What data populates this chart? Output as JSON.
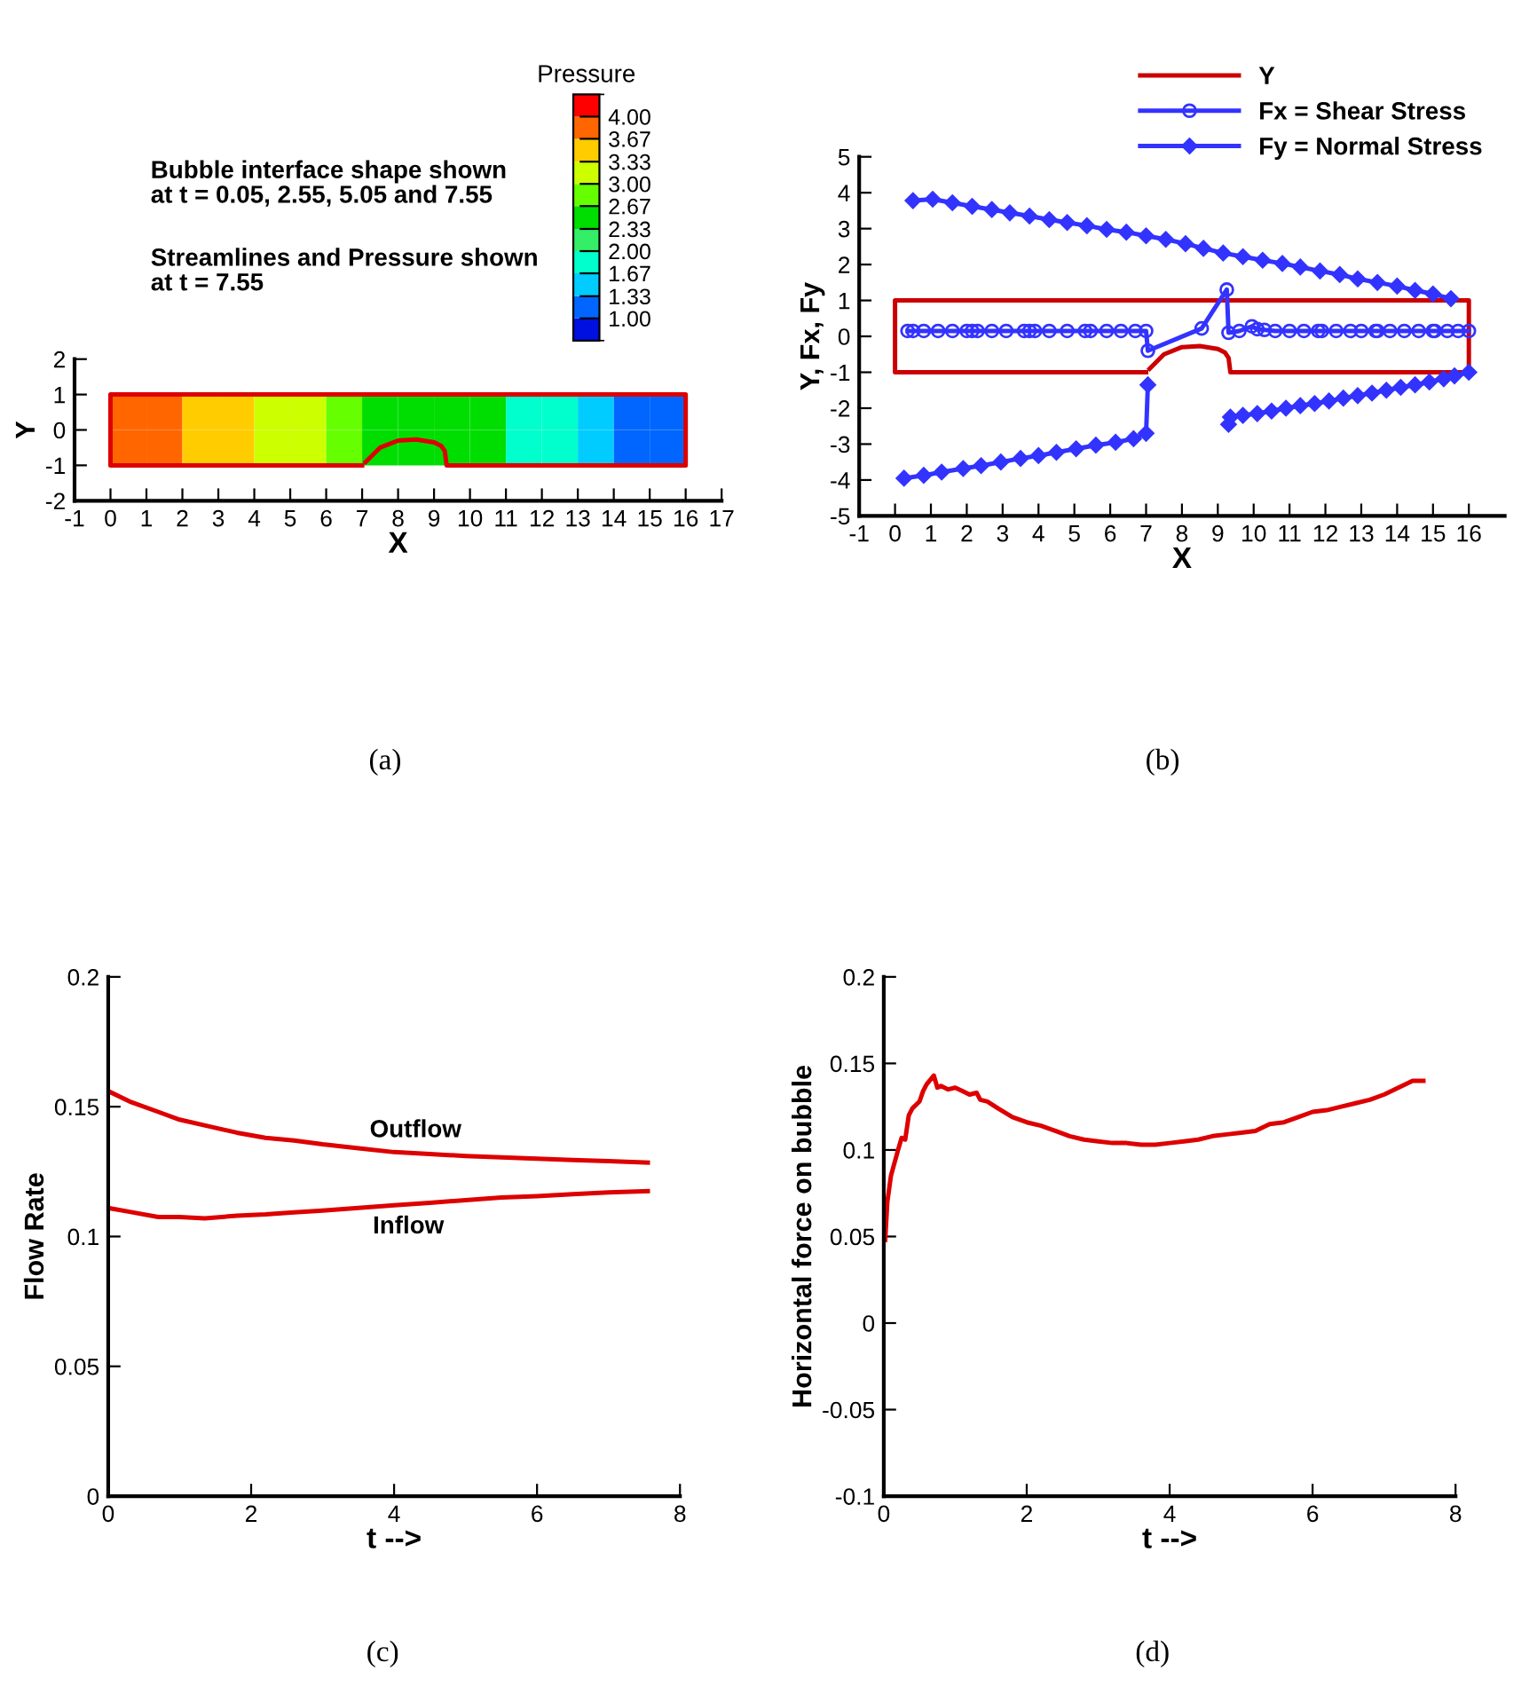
{
  "chart_data": [
    {
      "type": "heatmap",
      "xlabel": "X",
      "ylabel": "Y",
      "clabel": "Pressure",
      "x": [
        0.5,
        1.5,
        2.5,
        3.5,
        4.5,
        5.5,
        6.5,
        7.5,
        8.5,
        9.5,
        10.5,
        11.5,
        12.5,
        13.5,
        14.5,
        15.5
      ],
      "y": [
        0.5,
        -0.5
      ],
      "cells": [
        [
          3.83,
          3.83,
          3.5,
          3.5,
          3.17,
          3.17,
          2.83,
          2.5,
          2.5,
          2.5,
          2.5,
          1.83,
          1.83,
          1.5,
          1.17,
          1.17
        ],
        [
          3.83,
          3.83,
          3.5,
          3.5,
          3.17,
          3.17,
          2.83,
          2.5,
          2.5,
          2.5,
          2.5,
          1.83,
          1.83,
          1.5,
          1.17,
          1.17
        ]
      ],
      "clim": [
        0.67,
        4.33
      ],
      "cticks": [
        {
          "value": 1.0,
          "label": "1.00"
        },
        {
          "value": 1.33,
          "label": "1.33"
        },
        {
          "value": 1.67,
          "label": "1.67"
        },
        {
          "value": 2.0,
          "label": "2.00"
        },
        {
          "value": 2.33,
          "label": "2.33"
        },
        {
          "value": 2.67,
          "label": "2.67"
        },
        {
          "value": 3.0,
          "label": "3.00"
        },
        {
          "value": 3.33,
          "label": "3.33"
        },
        {
          "value": 3.67,
          "label": "3.67"
        },
        {
          "value": 4.0,
          "label": "4.00"
        }
      ],
      "colors": [
        "#0010e0",
        "#0066ff",
        "#00ccff",
        "#00ffcc",
        "#33ee66",
        "#00dd00",
        "#66ff00",
        "#ccff00",
        "#ffcc00",
        "#ff6600",
        "#ff0000"
      ],
      "series": [
        {
          "type": "line",
          "color": "#dd0000",
          "x": [
            7.0,
            0,
            0,
            16,
            16,
            9.35,
            9.3,
            9.2,
            9.0,
            8.5,
            8.0,
            7.5,
            7.1
          ],
          "values": [
            -1,
            -1,
            1,
            1,
            -1,
            -1,
            -0.6,
            -0.45,
            -0.35,
            -0.27,
            -0.3,
            -0.5,
            -0.9
          ]
        }
      ],
      "xlim": [
        -1,
        17
      ],
      "xticks": [
        -1,
        0,
        1,
        2,
        3,
        4,
        5,
        6,
        7,
        8,
        9,
        10,
        11,
        12,
        13,
        14,
        15,
        16,
        17
      ],
      "ylim": [
        -2,
        2
      ],
      "yticks": [
        -2,
        -1,
        0,
        1,
        2
      ],
      "annotations": [
        "Bubble interface shape shown\nat t = 0.05, 2.55, 5.05 and 7.55",
        "Streamlines and Pressure shown\nat t = 7.55",
        "(a)"
      ]
    },
    {
      "type": "line",
      "xlabel": "X",
      "ylabel": "Y, Fx, Fy",
      "legend": "top right",
      "series": [
        {
          "name": "Y",
          "color": "#cc0000",
          "marker": "none",
          "x": [
            7.0,
            0,
            0,
            16,
            16,
            9.35,
            9.3,
            9.2,
            9.0,
            8.5,
            8.0,
            7.5,
            7.1
          ],
          "values": [
            -1,
            -1,
            1,
            1,
            -1,
            -1,
            -0.6,
            -0.45,
            -0.35,
            -0.27,
            -0.3,
            -0.5,
            -0.9
          ]
        },
        {
          "name": "Fx = Shear Stress",
          "color": "#3333ff",
          "marker": "circle",
          "x": [
            0.35,
            0.5,
            0.8,
            1.2,
            1.6,
            2.0,
            2.15,
            2.3,
            2.7,
            3.1,
            3.6,
            3.75,
            3.9,
            4.3,
            4.8,
            5.3,
            5.45,
            5.9,
            6.3,
            6.7,
            7.0,
            7.05,
            8.55,
            9.25,
            9.3,
            9.6,
            9.95,
            10.1,
            10.3,
            10.6,
            11.0,
            11.4,
            11.8,
            11.9,
            12.3,
            12.7,
            13.0,
            13.4,
            13.45,
            13.8,
            14.2,
            14.6,
            15.0,
            15.05,
            15.4,
            15.7,
            16.0
          ],
          "values": [
            0.15,
            0.15,
            0.15,
            0.15,
            0.15,
            0.15,
            0.15,
            0.15,
            0.15,
            0.15,
            0.15,
            0.15,
            0.15,
            0.15,
            0.15,
            0.15,
            0.15,
            0.15,
            0.15,
            0.15,
            0.15,
            -0.4,
            0.22,
            1.3,
            0.1,
            0.15,
            0.28,
            0.2,
            0.18,
            0.15,
            0.15,
            0.15,
            0.15,
            0.15,
            0.15,
            0.15,
            0.15,
            0.15,
            0.15,
            0.15,
            0.15,
            0.15,
            0.15,
            0.15,
            0.15,
            0.15,
            0.15
          ]
        },
        {
          "name": "Fy = Normal Stress",
          "color": "#3333ff",
          "marker": "diamond",
          "x": [
            0.5,
            1.05,
            1.6,
            2.15,
            2.7,
            3.2,
            3.75,
            4.3,
            4.8,
            5.35,
            5.9,
            6.45,
            7.0,
            7.55,
            8.1,
            8.6,
            9.15,
            9.7,
            10.25,
            10.8,
            11.3,
            11.85,
            12.4,
            12.9,
            13.45,
            14.0,
            14.5,
            15.0,
            15.5
          ],
          "values": [
            3.78,
            3.82,
            3.72,
            3.62,
            3.53,
            3.44,
            3.35,
            3.25,
            3.17,
            3.08,
            2.98,
            2.9,
            2.8,
            2.7,
            2.58,
            2.45,
            2.32,
            2.22,
            2.12,
            2.03,
            1.93,
            1.82,
            1.72,
            1.6,
            1.5,
            1.4,
            1.28,
            1.18,
            1.05
          ]
        },
        {
          "color": "#3333ff",
          "marker": "diamond",
          "x": [
            0.25,
            0.8,
            1.3,
            1.9,
            2.4,
            2.95,
            3.5,
            4.0,
            4.5,
            5.05,
            5.6,
            6.15,
            6.65,
            7.0,
            7.05,
            8.0,
            9.3,
            9.35,
            9.7,
            10.1,
            10.5,
            10.9,
            11.3,
            11.7,
            12.1,
            12.5,
            12.9,
            13.3,
            13.7,
            14.1,
            14.5,
            14.9,
            15.3,
            15.6,
            16.0
          ],
          "values": [
            -3.95,
            -3.87,
            -3.78,
            -3.68,
            -3.6,
            -3.5,
            -3.4,
            -3.32,
            -3.23,
            -3.13,
            -3.03,
            -2.95,
            -2.85,
            -2.7,
            -1.35,
            null,
            -2.45,
            -2.25,
            -2.2,
            -2.15,
            -2.08,
            -2.0,
            -1.93,
            -1.87,
            -1.8,
            -1.72,
            -1.65,
            -1.58,
            -1.5,
            -1.42,
            -1.35,
            -1.27,
            -1.18,
            -1.1,
            -1.0
          ]
        }
      ],
      "xlim": [
        -1,
        17
      ],
      "xticks": [
        -1,
        0,
        1,
        2,
        3,
        4,
        5,
        6,
        7,
        8,
        9,
        10,
        11,
        12,
        13,
        14,
        15,
        16
      ],
      "ylim": [
        -5,
        5
      ],
      "yticks": [
        -5,
        -4,
        -3,
        -2,
        -1,
        0,
        1,
        2,
        3,
        4,
        5
      ],
      "annotations": [
        "(b)"
      ]
    },
    {
      "type": "line",
      "xlabel": "t -->",
      "ylabel": "Flow Rate",
      "series": [
        {
          "color": "#dd0000",
          "x": [
            0,
            0.3,
            0.7,
            1.0,
            1.4,
            1.8,
            2.2,
            2.6,
            3.0,
            3.5,
            4.0,
            4.5,
            5.0,
            5.5,
            6.0,
            6.5,
            7.0,
            7.55
          ],
          "values": [
            0.156,
            0.152,
            0.148,
            0.145,
            0.1425,
            0.14,
            0.138,
            0.137,
            0.1355,
            0.134,
            0.1325,
            0.1318,
            0.131,
            0.1305,
            0.13,
            0.1295,
            0.129,
            0.1285
          ]
        },
        {
          "color": "#dd0000",
          "x": [
            0,
            0.3,
            0.7,
            1.0,
            1.35,
            1.8,
            2.2,
            2.6,
            3.0,
            3.5,
            4.0,
            4.5,
            5.0,
            5.5,
            6.0,
            6.5,
            7.0,
            7.55
          ],
          "values": [
            0.111,
            0.1095,
            0.1075,
            0.1075,
            0.107,
            0.108,
            0.1085,
            0.1093,
            0.11,
            0.111,
            0.112,
            0.113,
            0.114,
            0.115,
            0.1155,
            0.1163,
            0.117,
            0.1175
          ]
        }
      ],
      "xlim": [
        0,
        8
      ],
      "xticks": [
        0,
        2,
        4,
        6,
        8
      ],
      "ylim": [
        0,
        0.2
      ],
      "yticks": [
        0,
        0.05,
        0.1,
        0.15,
        0.2
      ],
      "annotations": [
        {
          "text": "Outflow",
          "x": 4.3,
          "y": 0.1322
        },
        {
          "text": "Inflow",
          "x": 4.2,
          "y": 0.1122
        },
        "(c)"
      ]
    },
    {
      "type": "line",
      "xlabel": "t -->",
      "ylabel": "Horizontal force on bubble",
      "series": [
        {
          "color": "#dd0000",
          "x": [
            0.02,
            0.05,
            0.1,
            0.2,
            0.25,
            0.3,
            0.35,
            0.4,
            0.5,
            0.55,
            0.6,
            0.7,
            0.75,
            0.8,
            0.9,
            1.0,
            1.1,
            1.2,
            1.3,
            1.35,
            1.45,
            1.6,
            1.8,
            2.0,
            2.2,
            2.4,
            2.6,
            2.8,
            3.0,
            3.2,
            3.4,
            3.6,
            3.8,
            4.0,
            4.2,
            4.4,
            4.6,
            4.8,
            5.0,
            5.2,
            5.4,
            5.6,
            5.8,
            6.0,
            6.2,
            6.4,
            6.6,
            6.8,
            7.0,
            7.2,
            7.4,
            7.55
          ],
          "values": [
            0.048,
            0.07,
            0.085,
            0.1,
            0.107,
            0.106,
            0.12,
            0.124,
            0.128,
            0.134,
            0.138,
            0.143,
            0.136,
            0.137,
            0.135,
            0.136,
            0.134,
            0.132,
            0.133,
            0.129,
            0.128,
            0.124,
            0.119,
            0.116,
            0.114,
            0.111,
            0.108,
            0.106,
            0.105,
            0.104,
            0.104,
            0.103,
            0.103,
            0.104,
            0.105,
            0.106,
            0.108,
            0.109,
            0.11,
            0.111,
            0.115,
            0.116,
            0.119,
            0.122,
            0.123,
            0.125,
            0.127,
            0.129,
            0.132,
            0.136,
            0.14,
            0.14
          ]
        }
      ],
      "xlim": [
        0,
        8
      ],
      "xticks": [
        0,
        2,
        4,
        6,
        8
      ],
      "ylim": [
        -0.1,
        0.2
      ],
      "yticks": [
        -0.1,
        -0.05,
        0,
        0.05,
        0.1,
        0.15,
        0.2
      ],
      "annotations": [
        "(d)"
      ]
    }
  ]
}
